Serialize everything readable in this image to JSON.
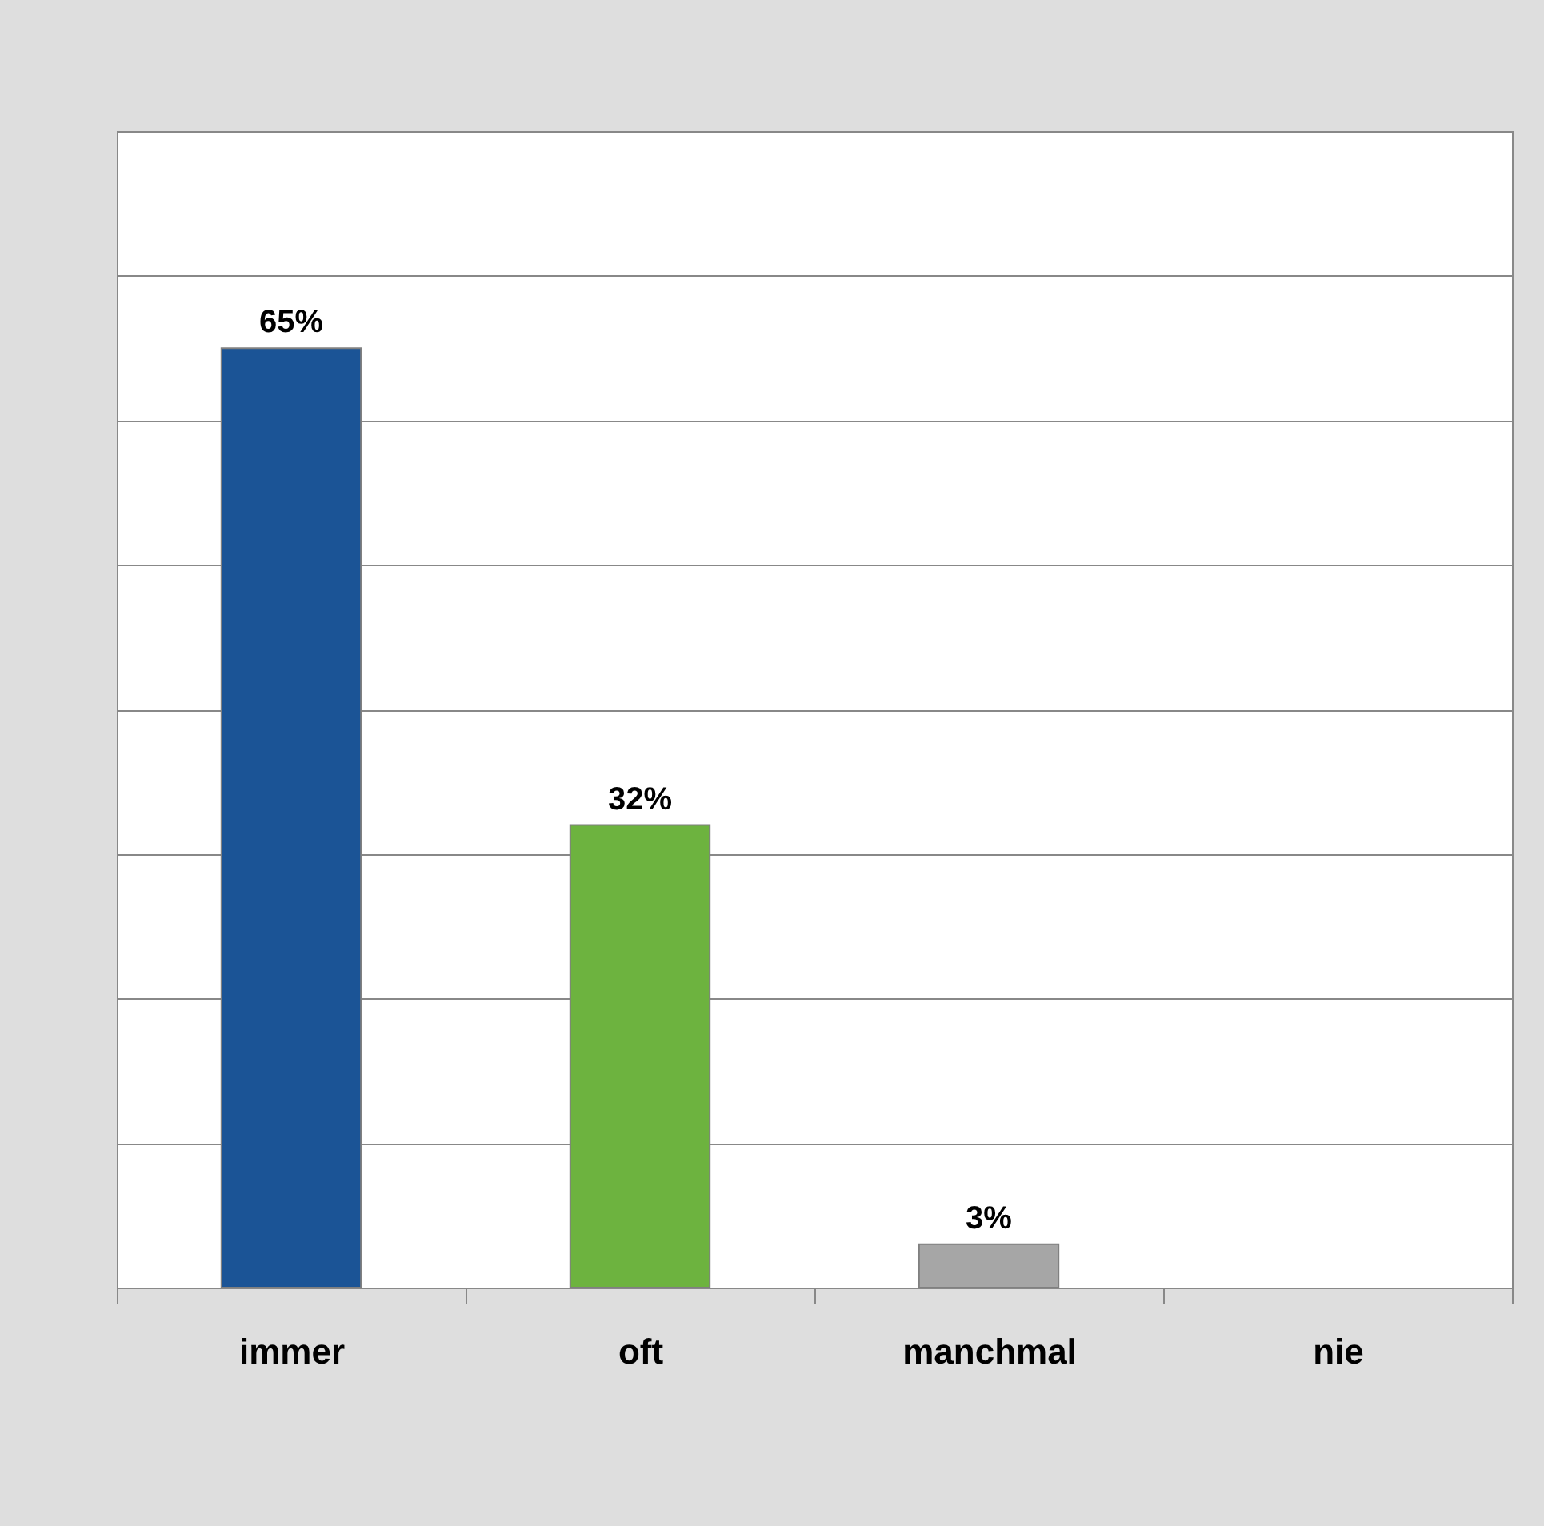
{
  "chart_data": {
    "type": "bar",
    "categories": [
      "immer",
      "oft",
      "manchmal",
      "nie"
    ],
    "values": [
      65,
      32,
      3,
      null
    ],
    "colors": [
      "#1b5496",
      "#6db33f",
      "#a6a6a6",
      null
    ],
    "value_labels": [
      "65%",
      "32%",
      "3%",
      null
    ],
    "ylim": [
      0,
      80
    ],
    "yticks": [
      {
        "value": 0,
        "label": null
      },
      {
        "value": 10,
        "label": null
      },
      {
        "value": 20,
        "label": null
      },
      {
        "value": 30,
        "label": null
      },
      {
        "value": 40,
        "label": null
      },
      {
        "value": 50,
        "label": null
      },
      {
        "value": 60,
        "label": null
      },
      {
        "value": 70,
        "label": null
      },
      {
        "value": 80,
        "label": null
      }
    ],
    "grid": "y",
    "tick_labels": "x"
  }
}
